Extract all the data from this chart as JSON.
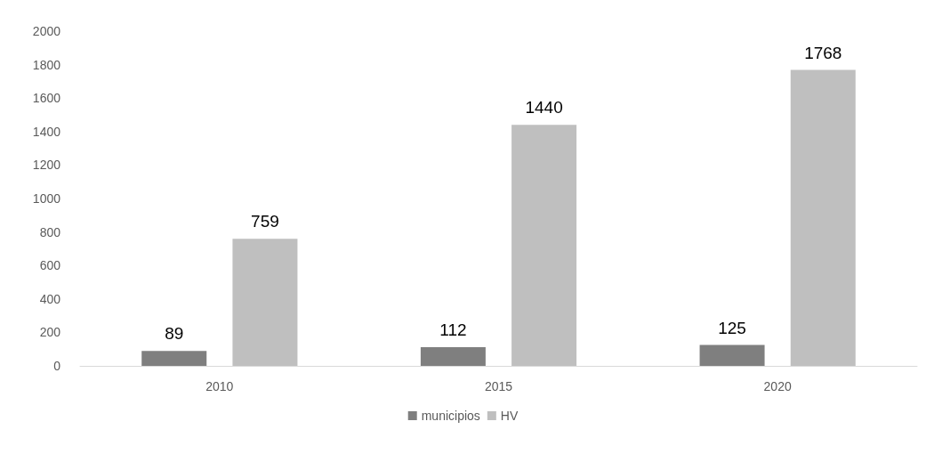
{
  "chart_data": {
    "type": "bar",
    "categories": [
      "2010",
      "2015",
      "2020"
    ],
    "series": [
      {
        "name": "municipios",
        "color": "#7f7f7f",
        "values": [
          89,
          112,
          125
        ]
      },
      {
        "name": "HV",
        "color": "#bfbfbf",
        "values": [
          759,
          1440,
          1768
        ]
      }
    ],
    "ylim": [
      0,
      2000
    ],
    "yticks": [
      0,
      200,
      400,
      600,
      800,
      1000,
      1200,
      1400,
      1600,
      1800,
      2000
    ],
    "grid": false,
    "legend": "bottom",
    "data_labels": true
  }
}
